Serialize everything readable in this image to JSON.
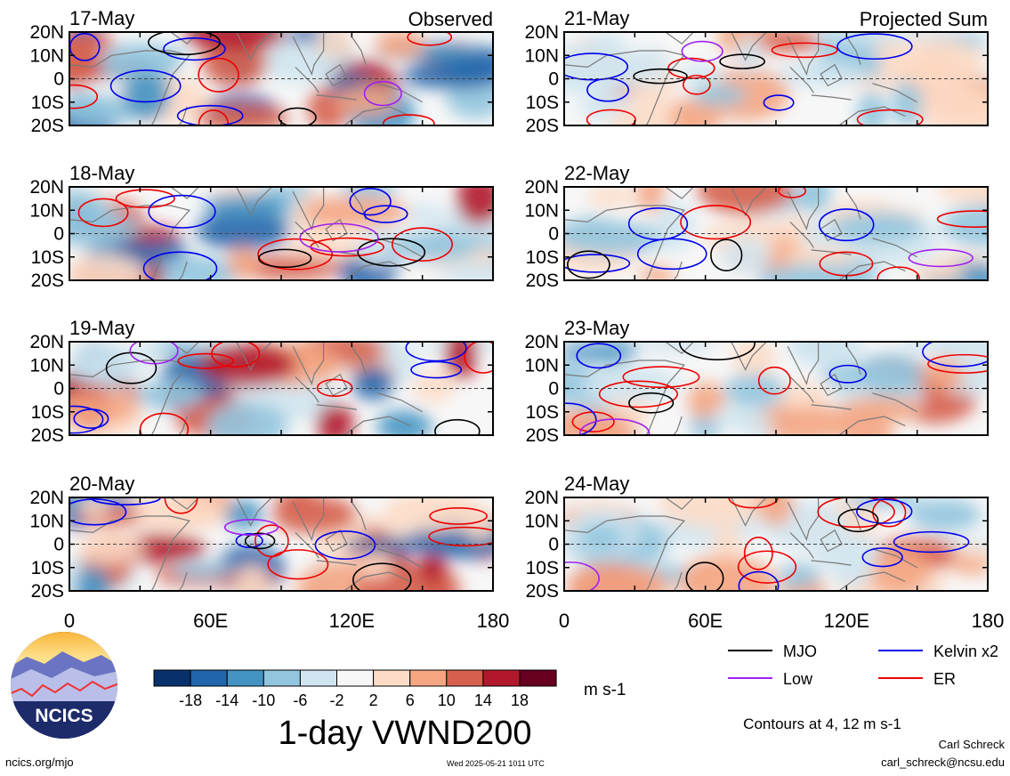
{
  "chart_data": {
    "type": "heatmap",
    "title": "1-day VWND200",
    "units": "m s-1",
    "left_label": "Observed",
    "right_label": "Projected Sum",
    "left_dates": [
      "17-May",
      "18-May",
      "19-May",
      "20-May"
    ],
    "right_dates": [
      "21-May",
      "22-May",
      "23-May",
      "24-May"
    ],
    "y_ticks": [
      "20N",
      "10N",
      "0",
      "10S",
      "20S"
    ],
    "x_ticks": [
      "0",
      "60E",
      "120E",
      "180"
    ],
    "x_range": [
      0,
      180
    ],
    "y_range": [
      -20,
      20
    ],
    "colorbar": {
      "labels": [
        "-18",
        "-14",
        "-10",
        "-6",
        "-2",
        "2",
        "6",
        "10",
        "14",
        "18"
      ],
      "colors": [
        "#08306b",
        "#2166ac",
        "#4393c3",
        "#92c5de",
        "#d1e5f0",
        "#f7f7f7",
        "#fddbc7",
        "#f4a582",
        "#d6604d",
        "#b2182b",
        "#67001f"
      ]
    },
    "legend": [
      {
        "name": "MJO",
        "color": "#000000"
      },
      {
        "name": "Kelvin x2",
        "color": "#0000ee"
      },
      {
        "name": "Low",
        "color": "#a020f0"
      },
      {
        "name": "ER",
        "color": "#ee0000"
      }
    ],
    "contour_note": "Contours at 4, 12 m s-1"
  },
  "logo_text": "NCICS",
  "footer": {
    "url": "ncics.org/mjo",
    "timestamp": "Wed 2025-05-21 1011 UTC",
    "author": "Carl Schreck",
    "email": "carl_schreck@ncsu.edu"
  }
}
